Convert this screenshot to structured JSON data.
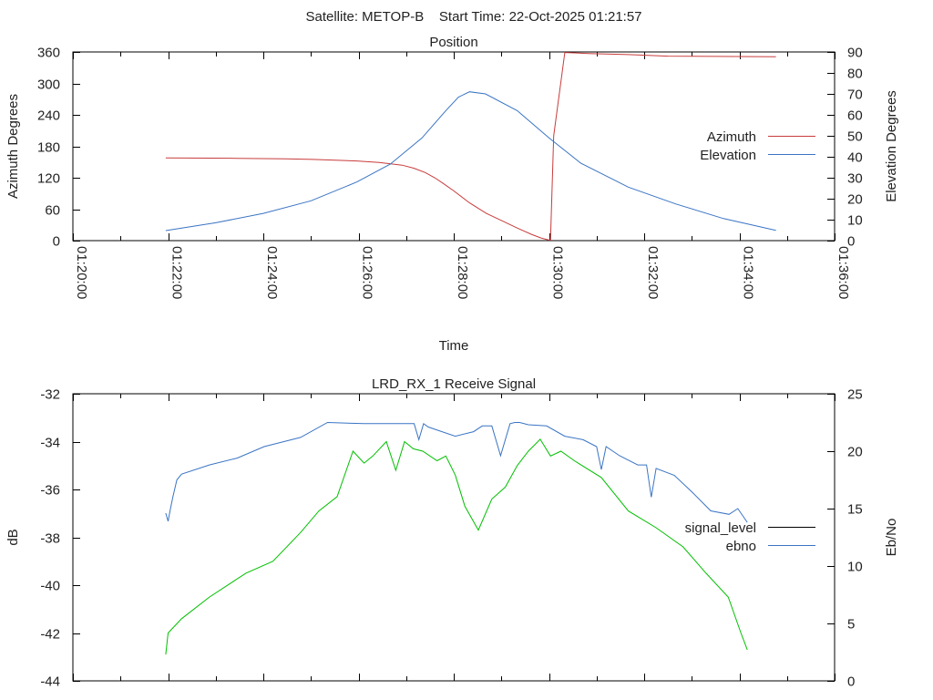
{
  "title": "Satellite: METOP-B    Start Time: 22-Oct-2025 01:21:57",
  "chart_data": [
    {
      "type": "line",
      "title": "Position",
      "xlabel": "Time",
      "ylabel": "Azimuth Degrees",
      "y2label": "Elevation Degrees",
      "xlim_seconds": [
        0,
        960
      ],
      "x_ticks": [
        "01:20:00",
        "01:22:00",
        "01:24:00",
        "01:26:00",
        "01:28:00",
        "01:30:00",
        "01:32:00",
        "01:34:00",
        "01:36:00"
      ],
      "ylim": [
        0,
        360
      ],
      "y_ticks": [
        "0",
        "60",
        "120",
        "180",
        "240",
        "300",
        "360"
      ],
      "y2lim": [
        0,
        90
      ],
      "y2_ticks": [
        "0",
        "10",
        "20",
        "30",
        "40",
        "50",
        "60",
        "70",
        "80",
        "90"
      ],
      "legend_position": "right",
      "series": [
        {
          "name": "Azimuth",
          "axis": "y",
          "color": "#c83c3c",
          "x_seconds": [
            117,
            207,
            268,
            302,
            358,
            386,
            415,
            430,
            444,
            456,
            466,
            480,
            500,
            521,
            545,
            560,
            578,
            590,
            600,
            602,
            606,
            620,
            650,
            700,
            750,
            886
          ],
          "values": [
            158,
            157,
            156,
            155,
            152,
            149,
            144,
            138,
            130,
            120,
            110,
            95,
            72,
            52,
            35,
            24,
            12,
            5,
            1,
            1,
            200,
            359,
            357,
            355,
            352,
            351
          ]
        },
        {
          "name": "Elevation",
          "axis": "y2",
          "color": "#3a74c4",
          "x_seconds": [
            117,
            180,
            240,
            300,
            358,
            400,
            440,
            470,
            486,
            500,
            520,
            560,
            600,
            640,
            700,
            760,
            820,
            886
          ],
          "values": [
            4.8,
            8.5,
            13.0,
            19.0,
            28.0,
            36.5,
            49.0,
            62.0,
            68.5,
            71.0,
            70.0,
            62.0,
            49.0,
            37.0,
            25.5,
            17.5,
            10.5,
            4.9
          ]
        }
      ]
    },
    {
      "type": "line",
      "title": "LRD_RX_1 Receive Signal",
      "ylabel": "dB",
      "y2label": "Eb/No",
      "xlim_seconds": [
        0,
        960
      ],
      "ylim": [
        -44,
        -32
      ],
      "y_ticks": [
        "-44",
        "-42",
        "-40",
        "-38",
        "-36",
        "-34",
        "-32"
      ],
      "y2lim": [
        0,
        25
      ],
      "y2_ticks": [
        "0",
        "5",
        "10",
        "15",
        "20",
        "25"
      ],
      "legend_position": "right",
      "legend": [
        {
          "name": "signal_level",
          "color": "#000000"
        },
        {
          "name": "ebno",
          "color": "#3a74c4"
        }
      ],
      "series": [
        {
          "name": "signal_level",
          "axis": "y",
          "color": "#00c000",
          "x_seconds": [
            117,
            120,
            137,
            172,
            218,
            252,
            287,
            310,
            333,
            353,
            367,
            378,
            395,
            407,
            418,
            429,
            441,
            459,
            470,
            482,
            494,
            511,
            528,
            545,
            560,
            574,
            589,
            602,
            615,
            632,
            666,
            700,
            735,
            769,
            798,
            826,
            842,
            850
          ],
          "values": [
            -42.9,
            -42.0,
            -41.4,
            -40.5,
            -39.5,
            -39.0,
            -37.8,
            -36.9,
            -36.3,
            -34.4,
            -34.9,
            -34.6,
            -34.0,
            -35.2,
            -34.0,
            -34.3,
            -34.4,
            -34.8,
            -34.6,
            -35.4,
            -36.7,
            -37.7,
            -36.4,
            -35.9,
            -35.0,
            -34.4,
            -33.9,
            -34.6,
            -34.4,
            -34.8,
            -35.5,
            -36.9,
            -37.6,
            -38.4,
            -39.5,
            -40.5,
            -42.0,
            -42.7
          ]
        },
        {
          "name": "ebno",
          "axis": "y2",
          "color": "#3a74c4",
          "x_seconds": [
            117,
            120,
            123,
            126,
            131,
            137,
            172,
            207,
            241,
            287,
            321,
            367,
            413,
            430,
            436,
            442,
            448,
            482,
            505,
            516,
            528,
            539,
            551,
            557,
            563,
            574,
            597,
            620,
            643,
            660,
            666,
            672,
            689,
            712,
            723,
            729,
            735,
            758,
            781,
            804,
            827,
            838,
            850
          ],
          "values": [
            14.6,
            13.9,
            15.0,
            16.0,
            17.5,
            18.0,
            18.8,
            19.4,
            20.4,
            21.2,
            22.5,
            22.4,
            22.4,
            22.4,
            21.0,
            22.4,
            22.1,
            21.3,
            21.7,
            22.2,
            22.2,
            19.6,
            22.4,
            22.5,
            22.5,
            22.3,
            22.2,
            21.3,
            21.0,
            20.4,
            18.4,
            20.4,
            19.6,
            18.8,
            18.8,
            16.0,
            18.5,
            17.9,
            16.4,
            14.8,
            14.5,
            15.0,
            13.8
          ]
        }
      ]
    }
  ]
}
